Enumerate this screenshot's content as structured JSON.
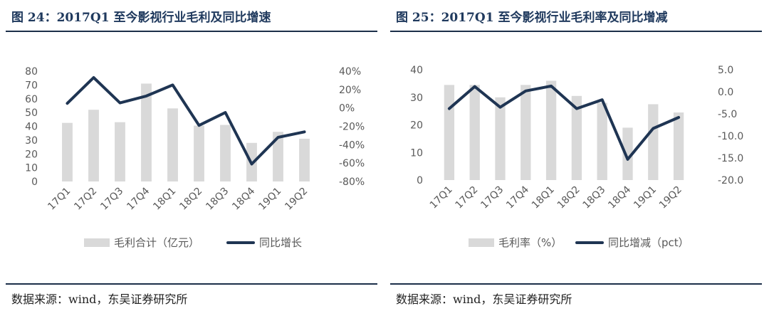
{
  "panels": [
    {
      "title": "图 24：2017Q1 至今影视行业毛利及同比增速",
      "source": "数据来源：wind，东吴证券研究所"
    },
    {
      "title": "图 25：2017Q1 至今影视行业毛利率及同比增减",
      "source": "数据来源：wind，东吴证券研究所"
    }
  ],
  "colors": {
    "bar": "#d9d9d9",
    "line": "#1f3553",
    "text": "#595959",
    "title": "#203a5e"
  },
  "chart_data": [
    {
      "type": "bar+line",
      "categories": [
        "17Q1",
        "17Q2",
        "17Q3",
        "17Q4",
        "18Q1",
        "18Q2",
        "18Q3",
        "18Q4",
        "19Q1",
        "19Q2"
      ],
      "series": [
        {
          "name": "毛利合计（亿元）",
          "type": "bar",
          "axis": "left",
          "values": [
            42.5,
            52,
            43,
            71,
            53,
            40.5,
            41,
            28,
            36,
            31
          ]
        },
        {
          "name": "同比增长",
          "type": "line",
          "axis": "right",
          "values": [
            5,
            33,
            5.5,
            13,
            25,
            -19,
            -5,
            -61,
            -32,
            -26
          ]
        }
      ],
      "left_axis": {
        "min": 0,
        "max": 80,
        "ticks": [
          0,
          10,
          20,
          30,
          40,
          50,
          60,
          70,
          80
        ],
        "tick_labels": [
          "0",
          "10",
          "20",
          "30",
          "40",
          "50",
          "60",
          "70",
          "80"
        ]
      },
      "right_axis": {
        "min": -80,
        "max": 40,
        "ticks": [
          -80,
          -60,
          -40,
          -20,
          0,
          20,
          40
        ],
        "tick_labels": [
          "-80%",
          "-60%",
          "-40%",
          "-20%",
          "0%",
          "20%",
          "40%"
        ]
      },
      "grid": false,
      "legend_position": "bottom"
    },
    {
      "type": "bar+line",
      "categories": [
        "17Q1",
        "17Q2",
        "17Q3",
        "17Q4",
        "18Q1",
        "18Q2",
        "18Q3",
        "18Q4",
        "19Q1",
        "19Q2"
      ],
      "series": [
        {
          "name": "毛利率（%）",
          "type": "bar",
          "axis": "left",
          "values": [
            34.5,
            34.5,
            30,
            34.5,
            36,
            30.5,
            28,
            19,
            27.5,
            24.5
          ]
        },
        {
          "name": "同比增减（pct）",
          "type": "line",
          "axis": "right",
          "values": [
            -3.8,
            1.2,
            -3.5,
            0.2,
            1.3,
            -3.8,
            -1.8,
            -15.3,
            -8.3,
            -5.8
          ]
        }
      ],
      "left_axis": {
        "min": 0,
        "max": 40,
        "ticks": [
          0,
          10,
          20,
          30,
          40
        ],
        "tick_labels": [
          "0",
          "10",
          "20",
          "30",
          "40"
        ]
      },
      "right_axis": {
        "min": -20,
        "max": 5,
        "ticks": [
          -20,
          -15,
          -10,
          -5,
          0,
          5
        ],
        "tick_labels": [
          "-20.0",
          "-15.0",
          "-10.0",
          "-5.0",
          "0.0",
          "5.0"
        ]
      },
      "grid": false,
      "legend_position": "bottom"
    }
  ]
}
